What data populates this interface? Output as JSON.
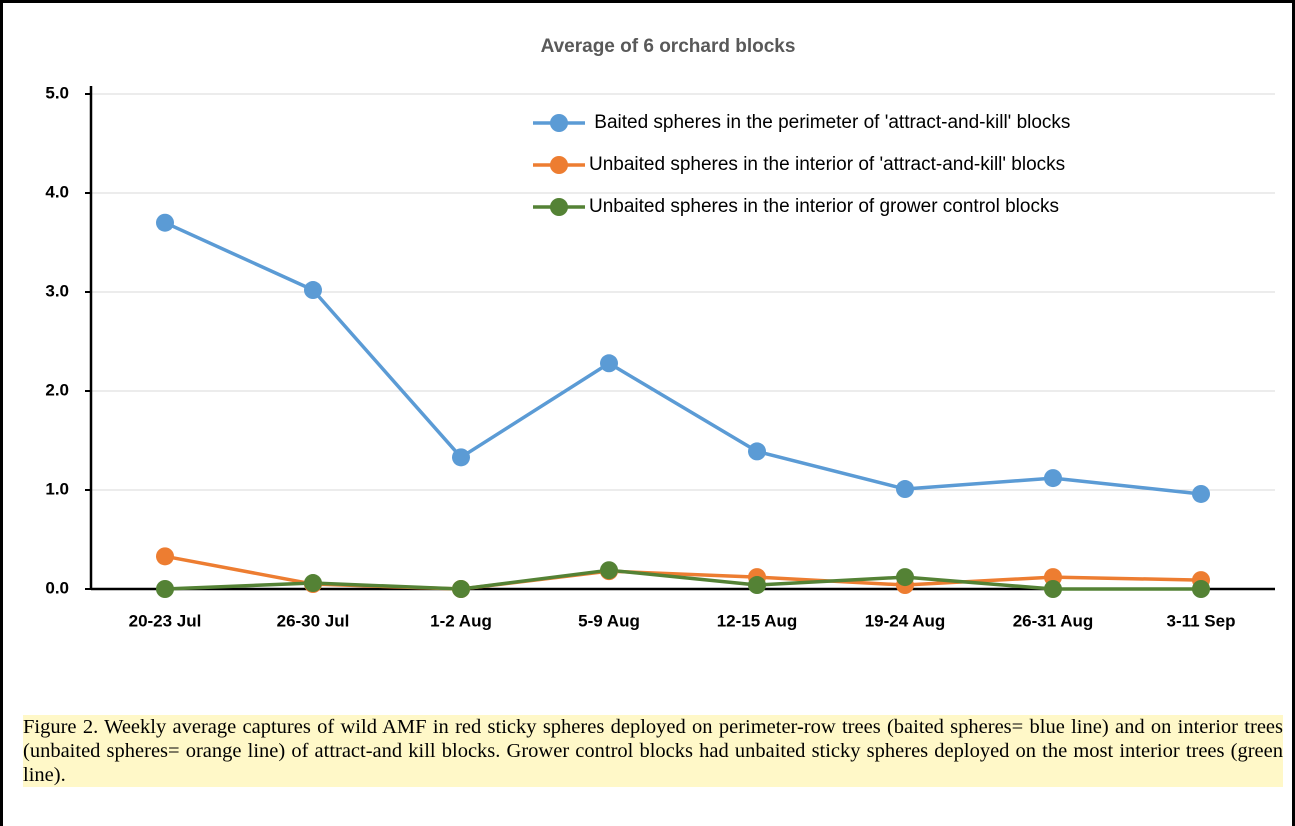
{
  "chart_data": {
    "type": "line",
    "title": "Average of 6 orchard blocks",
    "categories": [
      "20-23 Jul",
      "26-30 Jul",
      "1-2 Aug",
      "5-9 Aug",
      "12-15 Aug",
      "19-24 Aug",
      "26-31 Aug",
      "3-11 Sep"
    ],
    "series": [
      {
        "name": " Baited spheres in the perimeter of 'attract-and-kill' blocks",
        "color": "#5b9bd5",
        "values": [
          3.7,
          3.02,
          1.33,
          2.28,
          1.39,
          1.01,
          1.12,
          0.96
        ]
      },
      {
        "name": "Unbaited spheres in the interior of 'attract-and-kill' blocks",
        "color": "#ed7d31",
        "values": [
          0.33,
          0.05,
          0.0,
          0.18,
          0.12,
          0.04,
          0.12,
          0.09
        ]
      },
      {
        "name": "Unbaited spheres in the interior of grower control blocks",
        "color": "#548235",
        "values": [
          0.0,
          0.06,
          0.0,
          0.19,
          0.04,
          0.12,
          0.0,
          0.0
        ]
      }
    ],
    "ylim": [
      0,
      5
    ],
    "yticks": [
      {
        "value": 0,
        "label": "0.0"
      },
      {
        "value": 1,
        "label": "1.0"
      },
      {
        "value": 2,
        "label": "2.0"
      },
      {
        "value": 3,
        "label": "3.0"
      },
      {
        "value": 4,
        "label": "4.0"
      },
      {
        "value": 5,
        "label": "5.0"
      }
    ],
    "grid": true,
    "legend": "upper right"
  },
  "caption": "Figure 2. Weekly average captures of wild AMF in red sticky spheres deployed on perimeter-row trees (baited spheres= blue line) and on interior trees (unbaited spheres= orange line) of attract-and kill blocks. Grower control blocks had unbaited sticky spheres deployed on the most interior trees (green line)."
}
